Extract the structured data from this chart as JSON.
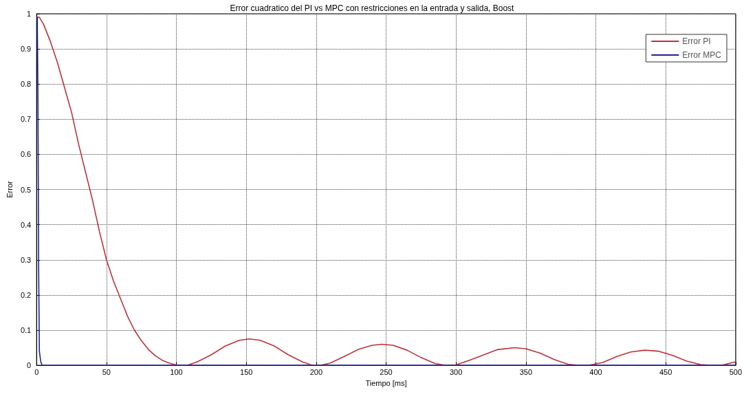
{
  "chart_data": {
    "type": "line",
    "title": "Error cuadratico del PI vs MPC con restricciones en la entrada y salida, Boost",
    "xlabel": "Tiempo [ms]",
    "ylabel": "Error",
    "xlim": [
      0,
      500
    ],
    "xticks": [
      0,
      50,
      100,
      150,
      200,
      250,
      300,
      350,
      400,
      450,
      500
    ],
    "ylim": [
      0,
      1
    ],
    "yticks": [
      0,
      0.1,
      0.2,
      0.3,
      0.4,
      0.5,
      0.6,
      0.7,
      0.8,
      0.9,
      1
    ],
    "grid": true,
    "legend": "top right",
    "line_style": "solid",
    "marker": "none",
    "series": [
      {
        "name": "Error PI",
        "color": "#c0303a",
        "x": [
          0,
          2,
          5,
          10,
          15,
          20,
          25,
          30,
          35,
          40,
          45,
          50,
          55,
          60,
          65,
          70,
          75,
          80,
          85,
          90,
          95,
          100,
          103,
          108,
          115,
          125,
          135,
          145,
          152,
          160,
          170,
          180,
          190,
          197,
          203,
          210,
          220,
          230,
          240,
          247,
          255,
          265,
          275,
          285,
          292,
          300,
          310,
          320,
          330,
          342,
          350,
          360,
          370,
          380,
          387,
          395,
          405,
          415,
          425,
          435,
          445,
          455,
          465,
          475,
          482,
          490,
          500
        ],
        "values": [
          0.99,
          0.99,
          0.97,
          0.92,
          0.86,
          0.79,
          0.72,
          0.63,
          0.55,
          0.47,
          0.38,
          0.3,
          0.24,
          0.19,
          0.14,
          0.1,
          0.07,
          0.045,
          0.027,
          0.014,
          0.006,
          0.001,
          0,
          0,
          0.01,
          0.03,
          0.055,
          0.071,
          0.075,
          0.071,
          0.055,
          0.03,
          0.01,
          0,
          0,
          0.006,
          0.025,
          0.045,
          0.057,
          0.06,
          0.057,
          0.043,
          0.022,
          0.005,
          0,
          0.001,
          0.015,
          0.03,
          0.045,
          0.05,
          0.047,
          0.035,
          0.017,
          0.003,
          0,
          0,
          0.008,
          0.025,
          0.038,
          0.043,
          0.04,
          0.028,
          0.012,
          0.002,
          0,
          0,
          0.01
        ]
      },
      {
        "name": "Error MPC",
        "color": "#20209a",
        "x": [
          0,
          0.5,
          1,
          1.5,
          2,
          3,
          4,
          500
        ],
        "values": [
          0.99,
          0.99,
          0.75,
          0.27,
          0.04,
          0.01,
          0,
          0
        ]
      }
    ]
  }
}
